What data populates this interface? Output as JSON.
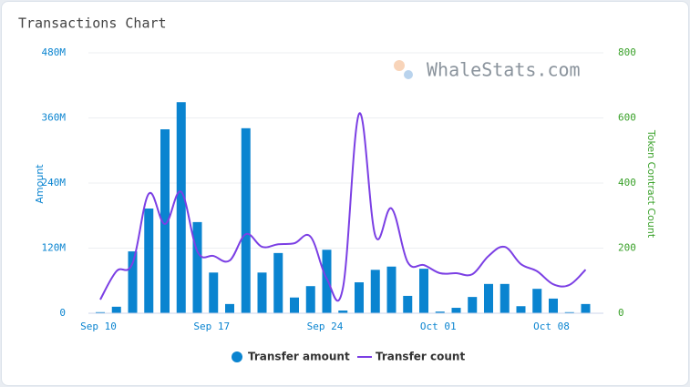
{
  "chart_data": {
    "type": "bar-line",
    "title": "Transactions Chart",
    "watermark": "WhaleStats.com",
    "ylabel": "Amount",
    "y2label": "Token Contract Count",
    "categories": [
      "Sep 10",
      null,
      null,
      null,
      null,
      null,
      null,
      "Sep 17",
      null,
      null,
      null,
      null,
      null,
      null,
      "Sep 24",
      null,
      null,
      null,
      null,
      null,
      null,
      "Oct 01",
      null,
      null,
      null,
      null,
      null,
      null,
      "Oct 08",
      null,
      null
    ],
    "ylim": [
      0,
      480
    ],
    "yticks": [
      0,
      {
        "value": 120,
        "label": "120M"
      },
      {
        "value": 240,
        "label": "240M"
      },
      {
        "value": 360,
        "label": "360M"
      },
      {
        "value": 480,
        "label": "480M"
      }
    ],
    "y2lim": [
      0,
      800
    ],
    "y2ticks": [
      0,
      200,
      400,
      600,
      800
    ],
    "grid": true,
    "legend": "bottom",
    "series": [
      {
        "name": "Transfer amount",
        "type": "bar",
        "color": "#0a84d0",
        "values": [
          2,
          12,
          114,
          193,
          339,
          389,
          168,
          75,
          17,
          341,
          75,
          111,
          29,
          50,
          117,
          5,
          57,
          80,
          86,
          32,
          82,
          3,
          10,
          30,
          54,
          54,
          13,
          45,
          27,
          2,
          17
        ]
      },
      {
        "name": "Transfer count",
        "type": "line",
        "axis": "y2",
        "color": "#7b3fe4",
        "values": [
          42,
          129,
          154,
          367,
          274,
          373,
          190,
          176,
          162,
          243,
          204,
          212,
          215,
          235,
          106,
          78,
          613,
          238,
          322,
          157,
          148,
          123,
          123,
          120,
          176,
          204,
          151,
          129,
          89,
          87,
          134
        ]
      }
    ]
  }
}
